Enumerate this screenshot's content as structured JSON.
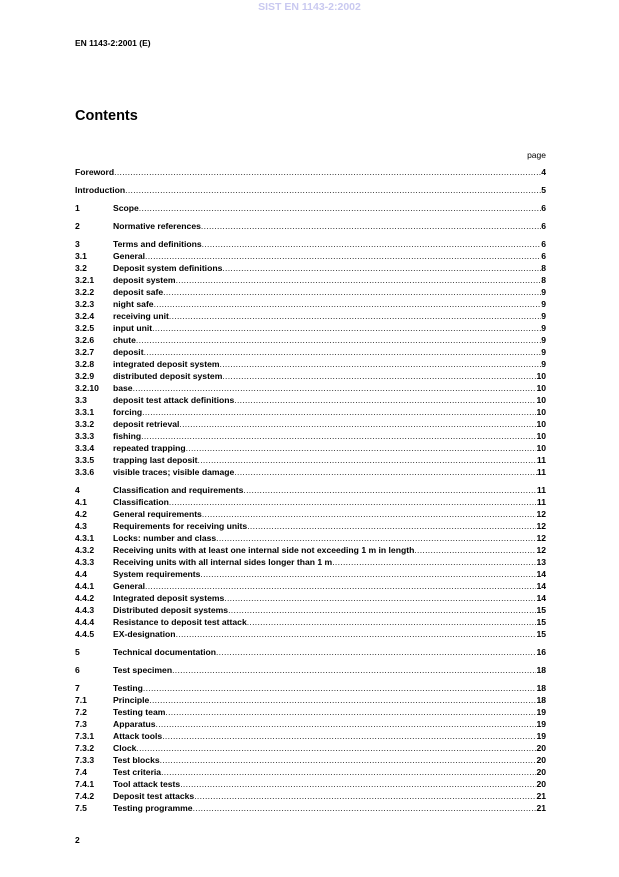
{
  "watermark": "SIST EN 1143-2:2002",
  "header": "EN 1143-2:2001 (E)",
  "title": "Contents",
  "page_label": "page",
  "toc_groups": [
    [
      {
        "num": "",
        "title": "Foreword",
        "page": "4"
      }
    ],
    [
      {
        "num": "",
        "title": "Introduction",
        "page": "5"
      }
    ],
    [
      {
        "num": "1",
        "title": "Scope",
        "page": "6"
      }
    ],
    [
      {
        "num": "2",
        "title": "Normative references",
        "page": "6"
      }
    ],
    [
      {
        "num": "3",
        "title": "Terms and definitions",
        "page": "6"
      },
      {
        "num": "3.1",
        "title": "General",
        "page": "6"
      },
      {
        "num": "3.2",
        "title": "Deposit system definitions",
        "page": "8"
      },
      {
        "num": "3.2.1",
        "title": "deposit system",
        "page": "8"
      },
      {
        "num": "3.2.2",
        "title": "deposit safe",
        "page": "9"
      },
      {
        "num": "3.2.3",
        "title": "night safe",
        "page": "9"
      },
      {
        "num": "3.2.4",
        "title": "receiving unit",
        "page": "9"
      },
      {
        "num": "3.2.5",
        "title": "input unit",
        "page": "9"
      },
      {
        "num": "3.2.6",
        "title": "chute",
        "page": "9"
      },
      {
        "num": "3.2.7",
        "title": "deposit",
        "page": "9"
      },
      {
        "num": "3.2.8",
        "title": "integrated deposit system",
        "page": "9"
      },
      {
        "num": "3.2.9",
        "title": "distributed deposit system",
        "page": "10"
      },
      {
        "num": "3.2.10",
        "title": "base",
        "page": "10"
      },
      {
        "num": "3.3",
        "title": "deposit test attack definitions",
        "page": "10"
      },
      {
        "num": "3.3.1",
        "title": "forcing",
        "page": "10"
      },
      {
        "num": "3.3.2",
        "title": "deposit retrieval",
        "page": "10"
      },
      {
        "num": "3.3.3",
        "title": "fishing",
        "page": "10"
      },
      {
        "num": "3.3.4",
        "title": "repeated trapping",
        "page": "10"
      },
      {
        "num": "3.3.5",
        "title": "trapping last deposit",
        "page": "11"
      },
      {
        "num": "3.3.6",
        "title": "visible traces; visible damage",
        "page": "11"
      }
    ],
    [
      {
        "num": "4",
        "title": "Classification and requirements",
        "page": "11"
      },
      {
        "num": "4.1",
        "title": "Classification",
        "page": "11"
      },
      {
        "num": "4.2",
        "title": "General requirements",
        "page": "12"
      },
      {
        "num": "4.3",
        "title": "Requirements for receiving units",
        "page": "12"
      },
      {
        "num": "4.3.1",
        "title": "Locks: number and class",
        "page": "12"
      },
      {
        "num": "4.3.2",
        "title": "Receiving units with at least one internal side not exceeding 1 m in length",
        "page": "12"
      },
      {
        "num": "4.3.3",
        "title": "Receiving units with all internal sides longer than 1 m",
        "page": "13"
      },
      {
        "num": "4.4",
        "title": "System requirements",
        "page": "14"
      },
      {
        "num": "4.4.1",
        "title": "General",
        "page": "14"
      },
      {
        "num": "4.4.2",
        "title": "Integrated deposit systems",
        "page": "14"
      },
      {
        "num": "4.4.3",
        "title": "Distributed deposit systems",
        "page": "15"
      },
      {
        "num": "4.4.4",
        "title": "Resistance to deposit test attack",
        "page": "15"
      },
      {
        "num": "4.4.5",
        "title": "EX-designation",
        "page": "15"
      }
    ],
    [
      {
        "num": "5",
        "title": "Technical documentation",
        "page": "16"
      }
    ],
    [
      {
        "num": "6",
        "title": "Test specimen",
        "page": "18"
      }
    ],
    [
      {
        "num": "7",
        "title": "Testing",
        "page": "18"
      },
      {
        "num": "7.1",
        "title": "Principle",
        "page": "18"
      },
      {
        "num": "7.2",
        "title": "Testing team",
        "page": "19"
      },
      {
        "num": "7.3",
        "title": "Apparatus",
        "page": "19"
      },
      {
        "num": "7.3.1",
        "title": "Attack tools",
        "page": "19"
      },
      {
        "num": "7.3.2",
        "title": "Clock",
        "page": "20"
      },
      {
        "num": "7.3.3",
        "title": "Test blocks",
        "page": "20"
      },
      {
        "num": "7.4",
        "title": "Test criteria",
        "page": "20"
      },
      {
        "num": "7.4.1",
        "title": "Tool attack tests",
        "page": "20"
      },
      {
        "num": "7.4.2",
        "title": "Deposit test attacks",
        "page": "21"
      },
      {
        "num": "7.5",
        "title": "Testing programme",
        "page": "21"
      }
    ]
  ],
  "footer_page_number": "2"
}
